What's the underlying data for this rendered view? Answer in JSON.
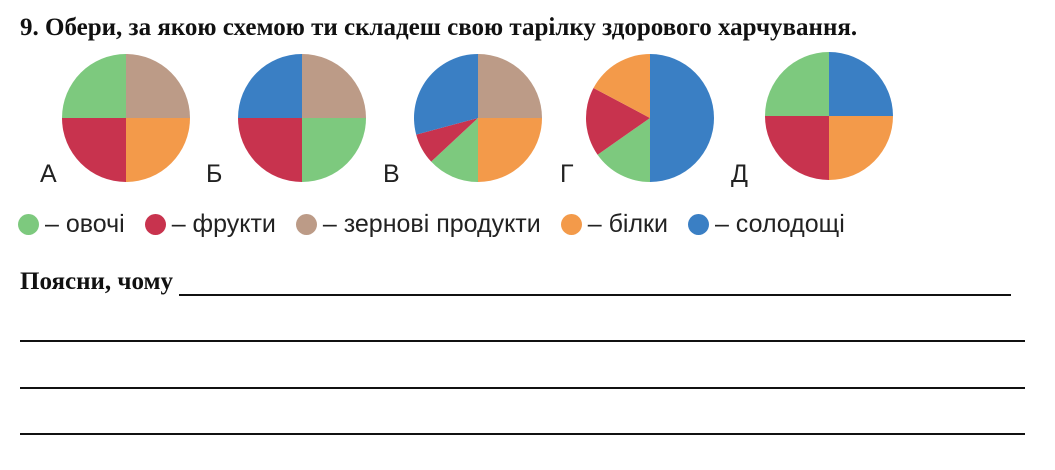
{
  "task": {
    "title": "9. Обери, за якою схемою ти складеш свою тарілку здорового харчування."
  },
  "colors": {
    "vegetables": "#7dc97e",
    "fruits": "#c8334e",
    "grains": "#bc9b87",
    "proteins": "#f39a4a",
    "sweets": "#3a7fc4"
  },
  "pies": [
    {
      "letter": "А",
      "slices": [
        {
          "cat": "grains",
          "from": 0,
          "to": 90
        },
        {
          "cat": "proteins",
          "from": 90,
          "to": 180
        },
        {
          "cat": "fruits",
          "from": 180,
          "to": 270
        },
        {
          "cat": "vegetables",
          "from": 270,
          "to": 360
        }
      ]
    },
    {
      "letter": "Б",
      "slices": [
        {
          "cat": "grains",
          "from": 0,
          "to": 90
        },
        {
          "cat": "vegetables",
          "from": 90,
          "to": 180
        },
        {
          "cat": "fruits",
          "from": 180,
          "to": 270
        },
        {
          "cat": "sweets",
          "from": 270,
          "to": 360
        }
      ]
    },
    {
      "letter": "В",
      "slices": [
        {
          "cat": "grains",
          "from": 0,
          "to": 90
        },
        {
          "cat": "proteins",
          "from": 90,
          "to": 180
        },
        {
          "cat": "vegetables",
          "from": 180,
          "to": 227
        },
        {
          "cat": "fruits",
          "from": 227,
          "to": 255
        },
        {
          "cat": "sweets",
          "from": 255,
          "to": 360
        }
      ]
    },
    {
      "letter": "Г",
      "slices": [
        {
          "cat": "sweets",
          "from": 0,
          "to": 180
        },
        {
          "cat": "vegetables",
          "from": 180,
          "to": 235
        },
        {
          "cat": "fruits",
          "from": 235,
          "to": 298
        },
        {
          "cat": "proteins",
          "from": 298,
          "to": 360
        }
      ]
    },
    {
      "letter": "Д",
      "slices": [
        {
          "cat": "sweets",
          "from": 0,
          "to": 90
        },
        {
          "cat": "proteins",
          "from": 90,
          "to": 180
        },
        {
          "cat": "fruits",
          "from": 180,
          "to": 270
        },
        {
          "cat": "vegetables",
          "from": 270,
          "to": 360
        }
      ]
    }
  ],
  "legend": [
    {
      "cat": "vegetables",
      "label": "– овочі"
    },
    {
      "cat": "fruits",
      "label": "– фрукти"
    },
    {
      "cat": "grains",
      "label": "– зернові продукти"
    },
    {
      "cat": "proteins",
      "label": "– білки"
    },
    {
      "cat": "sweets",
      "label": "– солодощі"
    }
  ],
  "explain": {
    "label": "Поясни, чому"
  }
}
